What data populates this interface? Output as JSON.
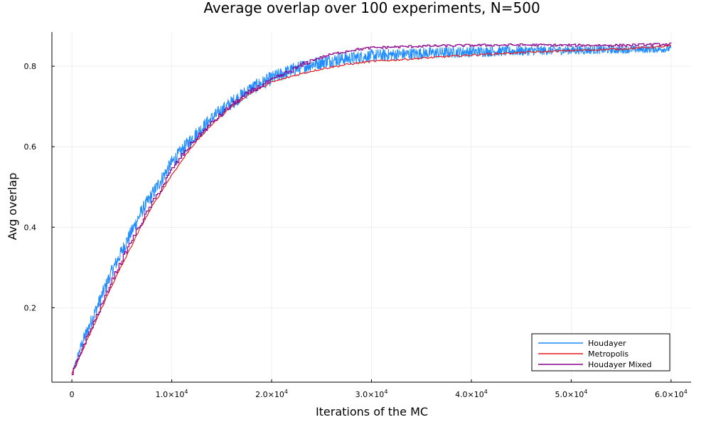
{
  "chart_data": {
    "type": "line",
    "title": "Average overlap over 100 experiments, N=500",
    "xlabel": "Iterations of the MC",
    "ylabel": "Avg overlap",
    "xlim": [
      -2000,
      62000
    ],
    "ylim": [
      0.015,
      0.885
    ],
    "x_ticks": [
      {
        "value": 0,
        "label": "0",
        "exp": ""
      },
      {
        "value": 10000,
        "label": "1.0×10",
        "exp": "4"
      },
      {
        "value": 20000,
        "label": "2.0×10",
        "exp": "4"
      },
      {
        "value": 30000,
        "label": "3.0×10",
        "exp": "4"
      },
      {
        "value": 40000,
        "label": "4.0×10",
        "exp": "4"
      },
      {
        "value": 50000,
        "label": "5.0×10",
        "exp": "4"
      },
      {
        "value": 60000,
        "label": "6.0×10",
        "exp": "4"
      }
    ],
    "y_ticks": [
      {
        "value": 0.2,
        "label": "0.2"
      },
      {
        "value": 0.4,
        "label": "0.4"
      },
      {
        "value": 0.6,
        "label": "0.6"
      },
      {
        "value": 0.8,
        "label": "0.8"
      }
    ],
    "grid": true,
    "legend_position": "bottom-right",
    "series": [
      {
        "name": "Houdayer",
        "color": "#1f8cff",
        "style": "noisy-band",
        "x": [
          0,
          1000,
          2000,
          3000,
          4000,
          5000,
          6000,
          7000,
          8000,
          9000,
          10000,
          12000,
          14000,
          16000,
          18000,
          20000,
          22000,
          24000,
          26000,
          28000,
          30000,
          35000,
          40000,
          45000,
          50000,
          55000,
          60000
        ],
        "y": [
          0.035,
          0.11,
          0.17,
          0.23,
          0.29,
          0.34,
          0.39,
          0.44,
          0.48,
          0.52,
          0.56,
          0.62,
          0.67,
          0.71,
          0.745,
          0.77,
          0.79,
          0.805,
          0.815,
          0.82,
          0.826,
          0.832,
          0.836,
          0.838,
          0.84,
          0.841,
          0.843
        ]
      },
      {
        "name": "Metropolis",
        "color": "#e81c1c",
        "style": "line",
        "x": [
          0,
          1000,
          2000,
          3000,
          4000,
          5000,
          6000,
          7000,
          8000,
          9000,
          10000,
          12000,
          14000,
          16000,
          18000,
          20000,
          22000,
          24000,
          26000,
          28000,
          30000,
          32000,
          35000,
          40000,
          45000,
          50000,
          55000,
          60000
        ],
        "y": [
          0.035,
          0.09,
          0.145,
          0.2,
          0.255,
          0.305,
          0.355,
          0.405,
          0.45,
          0.49,
          0.53,
          0.6,
          0.655,
          0.7,
          0.735,
          0.76,
          0.775,
          0.788,
          0.798,
          0.806,
          0.812,
          0.815,
          0.82,
          0.828,
          0.834,
          0.839,
          0.843,
          0.85
        ]
      },
      {
        "name": "Houdayer Mixed",
        "color": "#8b008b",
        "style": "steps",
        "x": [
          0,
          1000,
          2000,
          3000,
          4000,
          5000,
          6000,
          7000,
          8000,
          9000,
          10000,
          12000,
          14000,
          16000,
          18000,
          20000,
          22000,
          24000,
          26000,
          28000,
          30000,
          35000,
          40000,
          45000,
          50000,
          55000,
          60000
        ],
        "y": [
          0.035,
          0.1,
          0.155,
          0.21,
          0.27,
          0.32,
          0.37,
          0.415,
          0.46,
          0.5,
          0.545,
          0.61,
          0.66,
          0.705,
          0.74,
          0.765,
          0.79,
          0.815,
          0.83,
          0.84,
          0.846,
          0.85,
          0.852,
          0.853,
          0.852,
          0.852,
          0.855
        ]
      }
    ]
  }
}
